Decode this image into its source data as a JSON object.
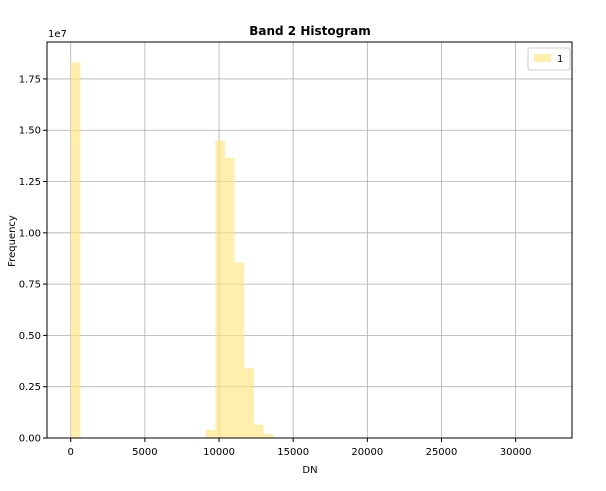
{
  "chart_data": {
    "type": "bar",
    "title": "Band 2 Histogram",
    "xlabel": "DN",
    "ylabel": "Frequency",
    "y_offset_text": "1e7",
    "xlim": [
      -1600,
      33800
    ],
    "ylim": [
      0,
      1.93
    ],
    "x_ticks": [
      0,
      5000,
      10000,
      15000,
      20000,
      25000,
      30000
    ],
    "x_tick_labels": [
      "0",
      "5000",
      "10000",
      "15000",
      "20000",
      "25000",
      "30000"
    ],
    "y_ticks": [
      0,
      0.25,
      0.5,
      0.75,
      1.0,
      1.25,
      1.5,
      1.75
    ],
    "y_tick_labels": [
      "0.00",
      "0.25",
      "0.50",
      "0.75",
      "1.00",
      "1.25",
      "1.50",
      "1.75"
    ],
    "grid": true,
    "legend_position": "top-right",
    "bar_color": "#ffe680",
    "bar_opacity": 0.65,
    "series": [
      {
        "name": "1",
        "bins": [
          {
            "x0": 0,
            "x1": 650,
            "value": 1.83
          },
          {
            "x0": 9100,
            "x1": 9750,
            "value": 0.04
          },
          {
            "x0": 9750,
            "x1": 10400,
            "value": 1.45
          },
          {
            "x0": 10400,
            "x1": 11050,
            "value": 1.365
          },
          {
            "x0": 11050,
            "x1": 11700,
            "value": 0.855
          },
          {
            "x0": 11700,
            "x1": 12350,
            "value": 0.34
          },
          {
            "x0": 12350,
            "x1": 13000,
            "value": 0.065
          },
          {
            "x0": 13000,
            "x1": 13650,
            "value": 0.02
          }
        ]
      }
    ]
  }
}
